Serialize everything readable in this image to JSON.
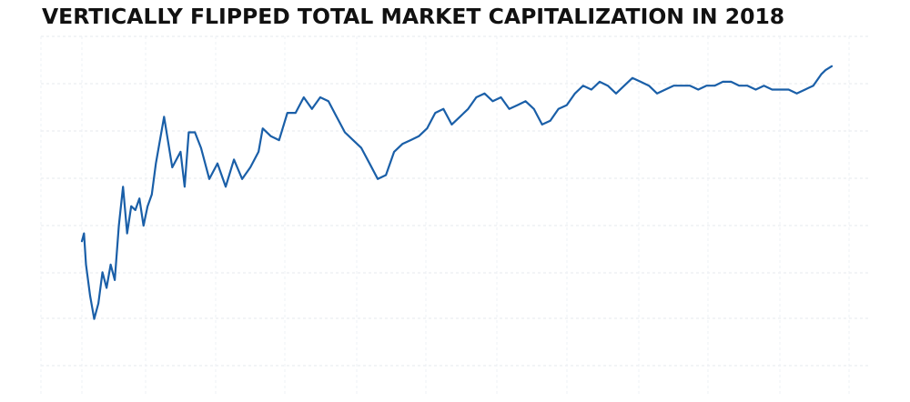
{
  "chart_data": {
    "type": "line",
    "title": "VERTICALLY FLIPPED TOTAL MARKET CAPITALIZATION IN 2018",
    "xlabel": "",
    "ylabel": "",
    "grid": true,
    "legend": "none",
    "x_range": [
      0,
      365
    ],
    "y_range": [
      0,
      8
    ],
    "y_inverted": true,
    "series": [
      {
        "color": "#1a5fa8",
        "x": [
          0,
          1,
          2,
          4,
          6,
          8,
          10,
          12,
          14,
          16,
          18,
          20,
          22,
          24,
          26,
          28,
          30,
          32,
          34,
          36,
          40,
          44,
          48,
          50,
          52,
          55,
          58,
          62,
          66,
          70,
          74,
          78,
          82,
          86,
          88,
          92,
          96,
          100,
          104,
          108,
          112,
          116,
          120,
          124,
          128,
          132,
          136,
          140,
          144,
          148,
          152,
          156,
          160,
          164,
          168,
          172,
          176,
          180,
          184,
          188,
          192,
          196,
          200,
          204,
          208,
          212,
          216,
          220,
          224,
          228,
          232,
          236,
          240,
          244,
          248,
          252,
          256,
          260,
          264,
          268,
          272,
          276,
          280,
          284,
          288,
          292,
          296,
          300,
          304,
          308,
          312,
          316,
          320,
          324,
          328,
          332,
          336,
          340,
          344,
          348,
          352,
          356,
          360,
          362,
          365
        ],
        "y": [
          4.8,
          4.6,
          5.4,
          6.2,
          6.8,
          6.4,
          5.6,
          6.0,
          5.4,
          5.8,
          4.4,
          3.4,
          4.6,
          3.9,
          4.0,
          3.7,
          4.4,
          3.9,
          3.6,
          2.8,
          1.6,
          2.9,
          2.5,
          3.4,
          2.0,
          2.0,
          2.4,
          3.2,
          2.8,
          3.4,
          2.7,
          3.2,
          2.9,
          2.5,
          1.9,
          2.1,
          2.2,
          1.5,
          1.5,
          1.1,
          1.4,
          1.1,
          1.2,
          1.6,
          2.0,
          2.2,
          2.4,
          2.8,
          3.2,
          3.1,
          2.5,
          2.3,
          2.2,
          2.1,
          1.9,
          1.5,
          1.4,
          1.8,
          1.6,
          1.4,
          1.1,
          1.0,
          1.2,
          1.1,
          1.4,
          1.3,
          1.2,
          1.4,
          1.8,
          1.7,
          1.4,
          1.3,
          1.0,
          0.8,
          0.9,
          0.7,
          0.8,
          1.0,
          0.8,
          0.6,
          0.7,
          0.8,
          1.0,
          0.9,
          0.8,
          0.8,
          0.8,
          0.9,
          0.8,
          0.8,
          0.7,
          0.7,
          0.8,
          0.8,
          0.9,
          0.8,
          0.9,
          0.9,
          0.9,
          1.0,
          0.9,
          0.8,
          0.5,
          0.4,
          0.3
        ]
      }
    ]
  }
}
